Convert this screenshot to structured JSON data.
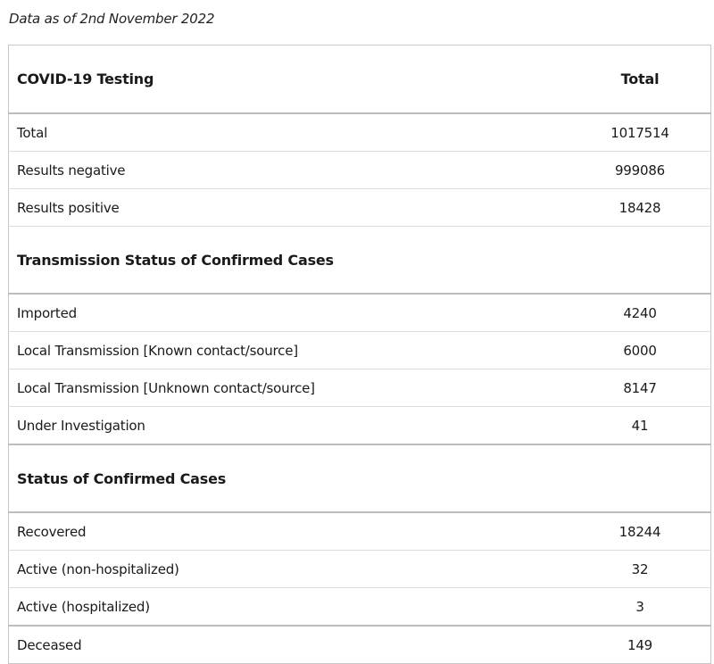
{
  "caption": "Data as of 2nd November 2022",
  "table": {
    "header": {
      "label": "COVID-19 Testing",
      "value_header": "Total"
    },
    "testing": [
      {
        "label": "Total",
        "value": "1017514"
      },
      {
        "label": "Results negative",
        "value": "999086"
      },
      {
        "label": "Results positive",
        "value": "18428"
      }
    ],
    "transmission_title": "Transmission Status of Confirmed Cases",
    "transmission": [
      {
        "label": "Imported",
        "value": "4240"
      },
      {
        "label": "Local Transmission [Known contact/source]",
        "value": "6000"
      },
      {
        "label": "Local Transmission [Unknown contact/source]",
        "value": "8147"
      },
      {
        "label": "Under Investigation",
        "value": "41"
      }
    ],
    "status_title": "Status of Confirmed Cases",
    "status": [
      {
        "label": "Recovered",
        "value": "18244"
      },
      {
        "label": "Active (non-hospitalized)",
        "value": "32"
      },
      {
        "label": "Active (hospitalized)",
        "value": "3"
      }
    ],
    "deceased": {
      "label": "Deceased",
      "value": "149"
    }
  }
}
